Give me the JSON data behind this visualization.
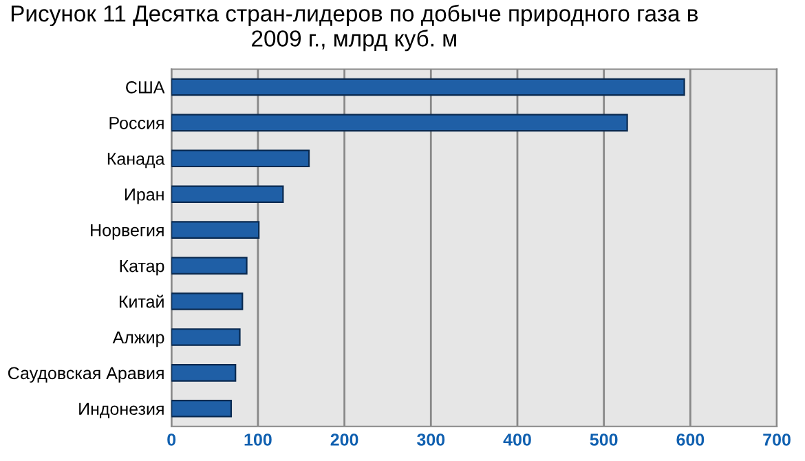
{
  "chart_data": {
    "type": "bar",
    "orientation": "horizontal",
    "title": "Рисунок 11 Десятка стран-лидеров по добыче природного газа в 2009 г., млрд куб. м",
    "categories": [
      "США",
      "Россия",
      "Канада",
      "Иран",
      "Норвегия",
      "Катар",
      "Китай",
      "Алжир",
      "Саудовская Аравия",
      "Индонезия"
    ],
    "values": [
      593,
      527,
      159,
      129,
      101,
      87,
      82,
      79,
      74,
      69
    ],
    "color": "#1f5fa6",
    "xlim": [
      0,
      700
    ],
    "xticks": [
      0,
      100,
      200,
      300,
      400,
      500,
      600,
      700
    ],
    "grid": "x",
    "legend": false
  }
}
